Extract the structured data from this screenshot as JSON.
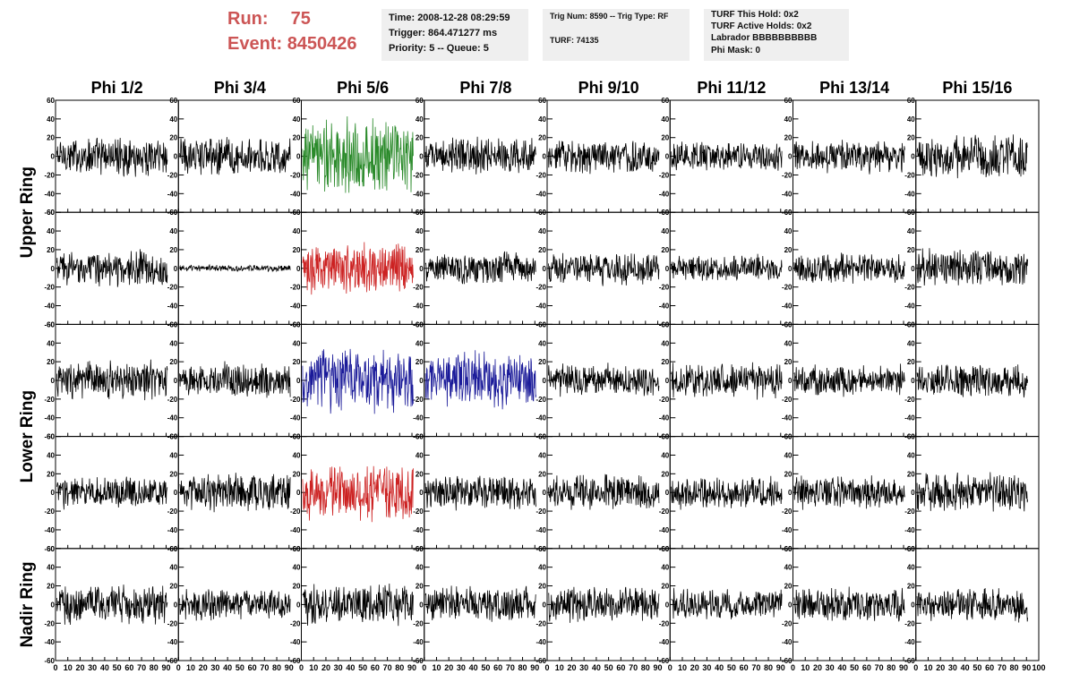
{
  "header": {
    "run_label": "Run:",
    "run_value": "75",
    "event_label": "Event:",
    "event_value": "8450426",
    "box1": [
      "Time: 2008-12-28 08:29:59",
      "Trigger: 864.471277 ms",
      "Priority: 5 -- Queue: 5"
    ],
    "box2": [
      "Trig Num: 8590 -- Trig Type: RF",
      "TURF: 74135"
    ],
    "box3": [
      "TURF This Hold: 0x2",
      "TURF Active Holds: 0x2",
      "Labrador BBBBBBBBBB",
      "Phi Mask: 0"
    ]
  },
  "colors": {
    "run_text": "#cc5555",
    "box_bg": "#efefef",
    "trace_default": "#000000",
    "trace_green": "#2a8a2a",
    "trace_red": "#cc2222",
    "trace_blue": "#1a1a99"
  },
  "chart_data": {
    "type": "line",
    "columns": [
      "Phi 1/2",
      "Phi 3/4",
      "Phi 5/6",
      "Phi 7/8",
      "Phi 9/10",
      "Phi 11/12",
      "Phi 13/14",
      "Phi 15/16"
    ],
    "ring_labels": [
      {
        "label": "Upper Ring",
        "rows": [
          0,
          1
        ]
      },
      {
        "label": "Lower Ring",
        "rows": [
          2,
          3
        ]
      },
      {
        "label": "Nadir Ring",
        "rows": [
          4
        ]
      }
    ],
    "ylim": [
      -60,
      60
    ],
    "xlim": [
      0,
      100
    ],
    "y_ticks": [
      -60,
      -40,
      -20,
      0,
      20,
      40,
      60
    ],
    "x_ticks": [
      0,
      10,
      20,
      30,
      40,
      50,
      60,
      70,
      80,
      90,
      100
    ],
    "x_tick_labels": [
      "0",
      "10",
      "20",
      "30",
      "40",
      "50",
      "60",
      "70",
      "80",
      "90",
      "100"
    ],
    "y_tick_labels": [
      "-60",
      "-40",
      "-20",
      "0",
      "20",
      "40",
      "60"
    ],
    "panel_amplitudes": [
      [
        18,
        18,
        35,
        17,
        16,
        14,
        15,
        20
      ],
      [
        16,
        3,
        24,
        16,
        15,
        12,
        14,
        18
      ],
      [
        18,
        16,
        30,
        26,
        15,
        16,
        14,
        15
      ],
      [
        15,
        18,
        26,
        16,
        16,
        15,
        15,
        18
      ],
      [
        18,
        14,
        18,
        16,
        16,
        15,
        16,
        16
      ]
    ],
    "highlighted_panels": [
      {
        "row": 0,
        "col": 2,
        "color": "green"
      },
      {
        "row": 1,
        "col": 2,
        "color": "red"
      },
      {
        "row": 2,
        "col": 2,
        "color": "blue"
      },
      {
        "row": 2,
        "col": 3,
        "color": "blue"
      },
      {
        "row": 3,
        "col": 2,
        "color": "red"
      }
    ]
  }
}
